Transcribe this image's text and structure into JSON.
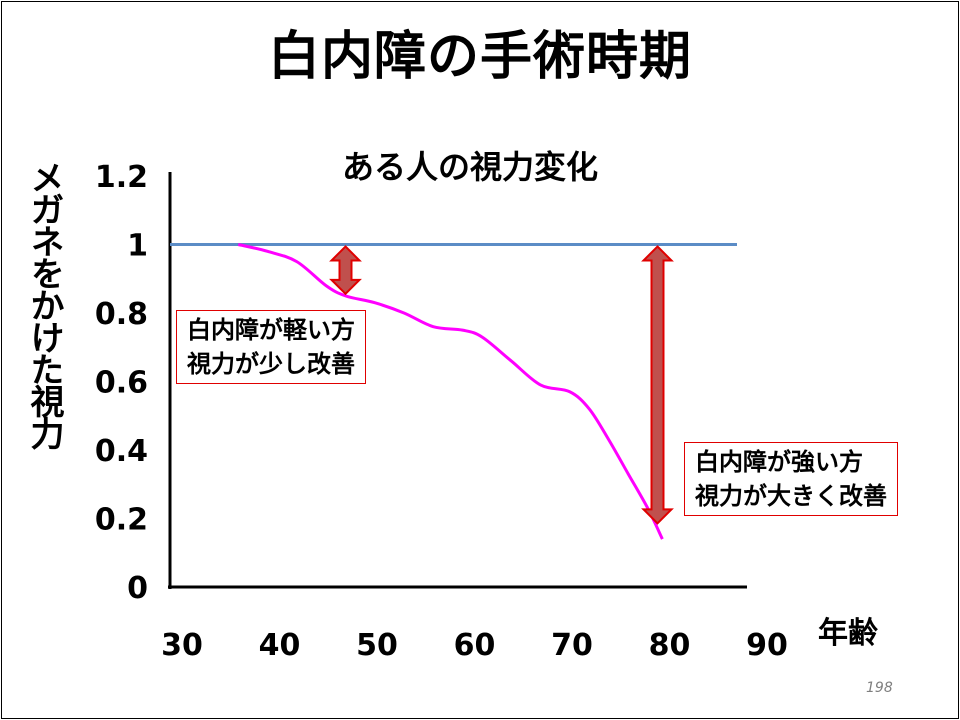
{
  "slide": {
    "title": "白内障の手術時期",
    "page_number": "198"
  },
  "chart_data": {
    "type": "line",
    "title": "ある人の視力変化",
    "xlabel": "年齢",
    "ylabel": "メガネをかけた視力",
    "xlim": [
      30,
      90
    ],
    "ylim": [
      0,
      1.2
    ],
    "x_ticks": [
      "30",
      "40",
      "50",
      "60",
      "70",
      "80",
      "90"
    ],
    "y_ticks": [
      "0",
      "0.2",
      "0.4",
      "0.6",
      "0.8",
      "1",
      "1.2"
    ],
    "series": [
      {
        "color": "#ff00ff",
        "x": [
          37,
          40,
          43,
          46,
          48,
          51,
          54,
          57,
          60,
          62,
          65,
          68,
          71,
          73,
          75,
          77,
          79,
          80.5
        ],
        "y": [
          1.0,
          0.98,
          0.95,
          0.88,
          0.85,
          0.83,
          0.8,
          0.76,
          0.75,
          0.73,
          0.66,
          0.59,
          0.57,
          0.52,
          0.43,
          0.33,
          0.23,
          0.14
        ]
      }
    ],
    "reference_line": {
      "y": 1.0,
      "color": "#5b8cc6"
    },
    "annotations": [
      {
        "type": "double-arrow",
        "x": 48,
        "y_from": 1.0,
        "y_to": 0.85,
        "color": "#c0504d"
      },
      {
        "type": "double-arrow",
        "x": 80,
        "y_from": 1.0,
        "y_to": 0.18,
        "color": "#c0504d"
      }
    ],
    "callouts": [
      {
        "lines": [
          "白内障が軽い方",
          "視力が少し改善"
        ]
      },
      {
        "lines": [
          "白内障が強い方",
          "視力が大きく改善"
        ]
      }
    ],
    "grid": false
  }
}
